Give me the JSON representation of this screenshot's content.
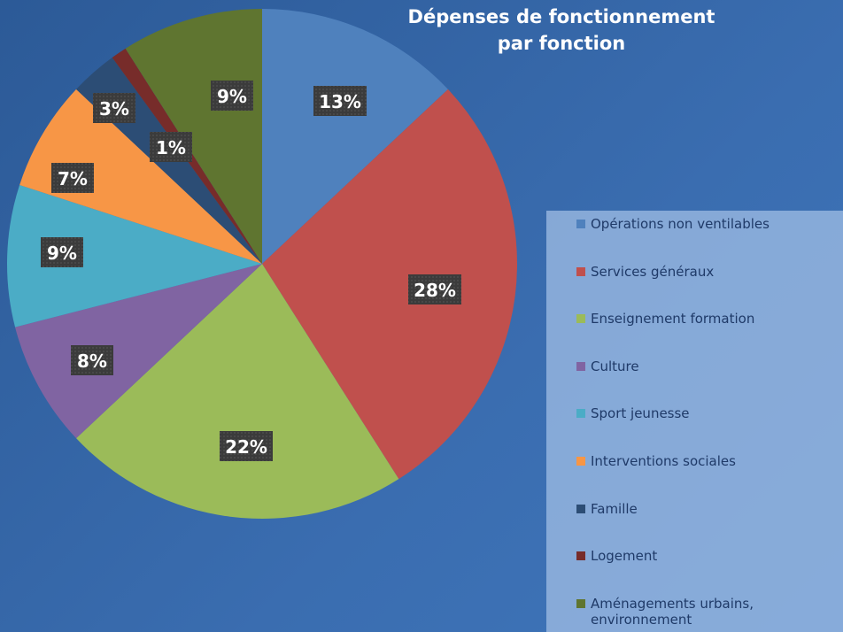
{
  "chart_data": {
    "type": "pie",
    "title": "Dépenses de fonctionnement par fonction",
    "categories": [
      "Opérations non ventilables",
      "Services généraux",
      "Enseignement formation",
      "Culture",
      "Sport jeunesse",
      "Interventions sociales",
      "Famille",
      "Logement",
      "Aménagements urbains, environnement"
    ],
    "values": [
      13,
      28,
      22,
      8,
      9,
      7,
      3,
      1,
      9
    ],
    "value_labels": [
      "13%",
      "28%",
      "22%",
      "8%",
      "9%",
      "7%",
      "3%",
      "1%",
      "9%"
    ],
    "colors": [
      "#4f81bd",
      "#c0504d",
      "#9bbb59",
      "#8064a2",
      "#4bacc6",
      "#f79646",
      "#2c4d75",
      "#772c2a",
      "#5f7530"
    ],
    "legend": "right"
  }
}
